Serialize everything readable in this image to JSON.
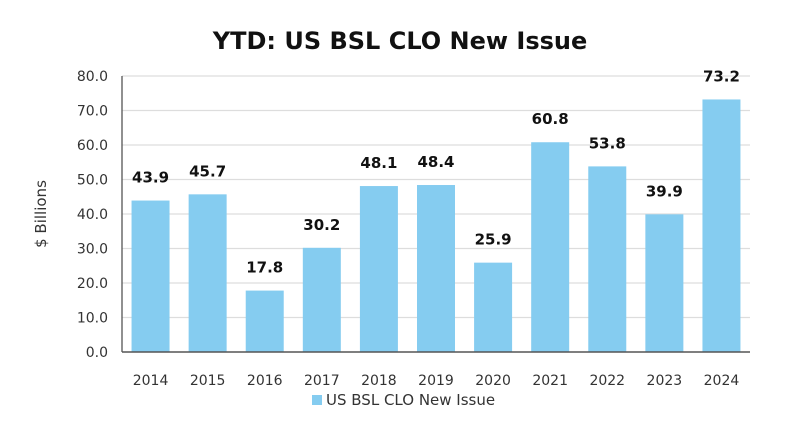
{
  "chart_data": {
    "type": "bar",
    "title": "YTD: US BSL CLO New Issue",
    "xlabel": "",
    "ylabel": "$ Billions",
    "ylim": [
      0,
      80
    ],
    "yticks": [
      "0.0",
      "10.0",
      "20.0",
      "30.0",
      "40.0",
      "50.0",
      "60.0",
      "70.0",
      "80.0"
    ],
    "ytick_values": [
      0,
      10,
      20,
      30,
      40,
      50,
      60,
      70,
      80
    ],
    "grid": true,
    "legend_position": "bottom-center",
    "categories": [
      "2014",
      "2015",
      "2016",
      "2017",
      "2018",
      "2019",
      "2020",
      "2021",
      "2022",
      "2023",
      "2024"
    ],
    "series": [
      {
        "name": "US BSL CLO New Issue",
        "color": "#85CCF0",
        "values": [
          43.9,
          45.7,
          17.8,
          30.2,
          48.1,
          48.4,
          25.9,
          60.8,
          53.8,
          39.9,
          73.2
        ],
        "labels": [
          "43.9",
          "45.7",
          "17.8",
          "30.2",
          "48.1",
          "48.4",
          "25.9",
          "60.8",
          "53.8",
          "39.9",
          "73.2"
        ]
      }
    ]
  }
}
